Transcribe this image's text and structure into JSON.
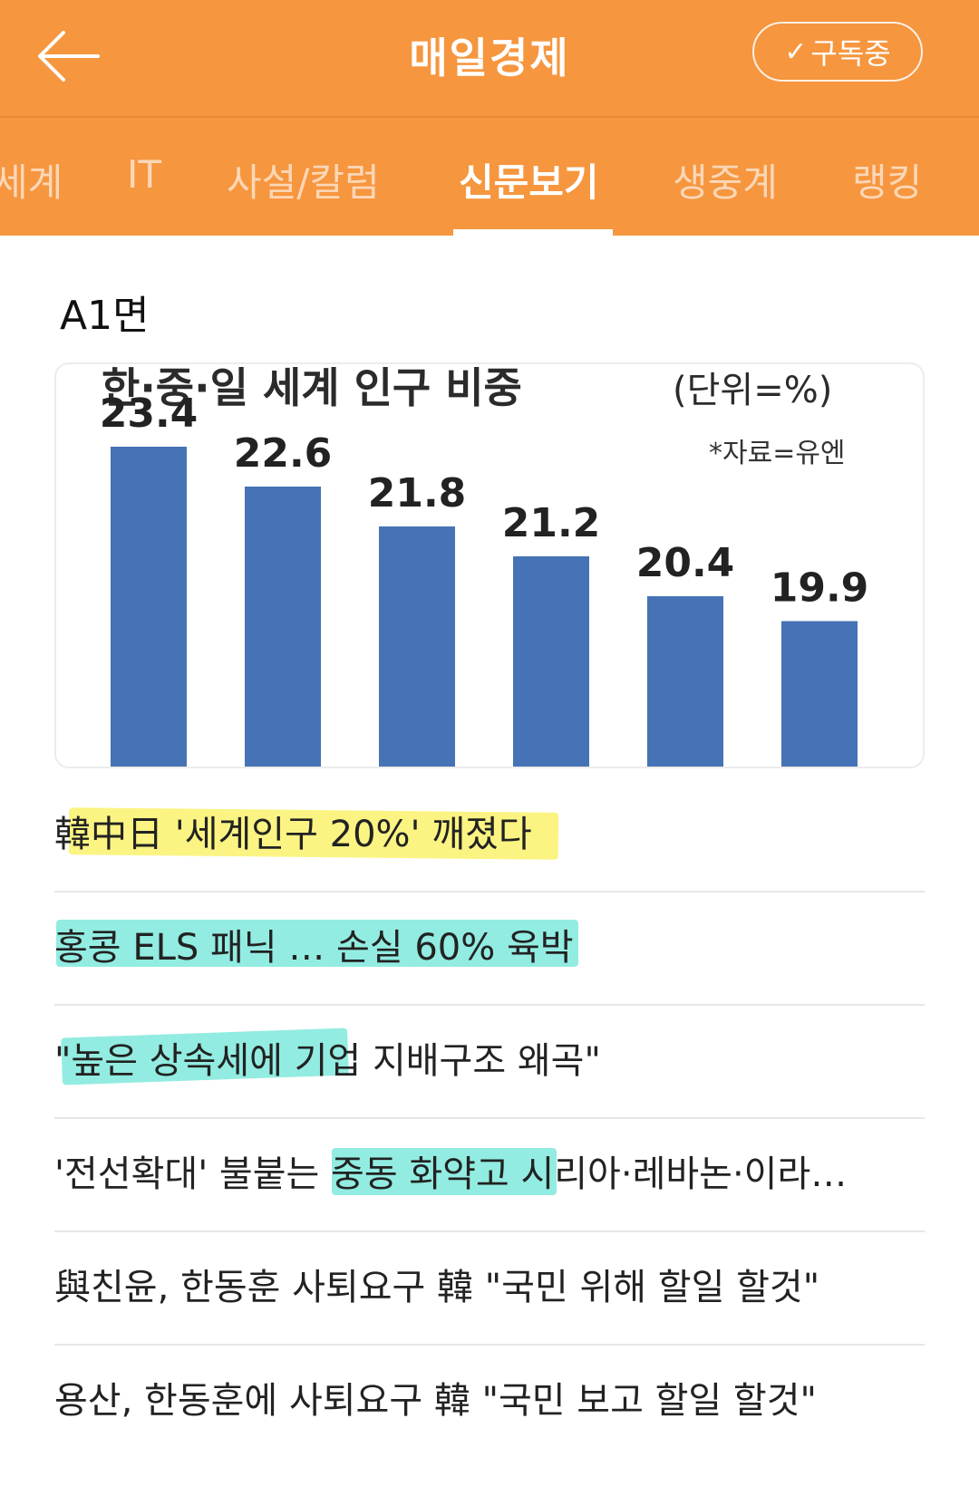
{
  "header": {
    "title": "매일경제",
    "back_icon": "arrow-left-icon",
    "subscribe_label": "구독중",
    "subscribe_icon": "check-icon",
    "bg_color": "#f6963f"
  },
  "tabs": [
    {
      "label": "세계",
      "active": false
    },
    {
      "label": "IT",
      "active": false
    },
    {
      "label": "사설/칼럼",
      "active": false
    },
    {
      "label": "신문보기",
      "active": true
    },
    {
      "label": "생중계",
      "active": false
    },
    {
      "label": "랭킹",
      "active": false
    }
  ],
  "section": {
    "label": "A1면"
  },
  "chart_data": {
    "type": "bar",
    "title": "한·중·일 세계 인구 비중",
    "unit": "(단위=%)",
    "source": "*자료=유엔",
    "categories": [],
    "values": [
      23.4,
      22.6,
      21.8,
      21.2,
      20.4,
      19.9
    ],
    "labels": [
      "23.4",
      "22.6",
      "21.8",
      "21.2",
      "20.4",
      "19.9"
    ],
    "bar_color": "#4573b5",
    "grid": false
  },
  "news": [
    {
      "title": "韓中日 '세계인구 20%' 깨졌다"
    },
    {
      "title": "홍콩 ELS 패닉 … 손실 60% 육박"
    },
    {
      "title": "\"높은 상속세에 기업 지배구조 왜곡\""
    },
    {
      "title": "'전선확대' 불붙는 중동 화약고 시리아·레바논·이라…"
    },
    {
      "title": "與친윤, 한동훈 사퇴요구 韓 \"국민 위해 할일 할것\""
    },
    {
      "title": "용산, 한동훈에 사퇴요구 韓 \"국민 보고 할일 할것\""
    }
  ]
}
